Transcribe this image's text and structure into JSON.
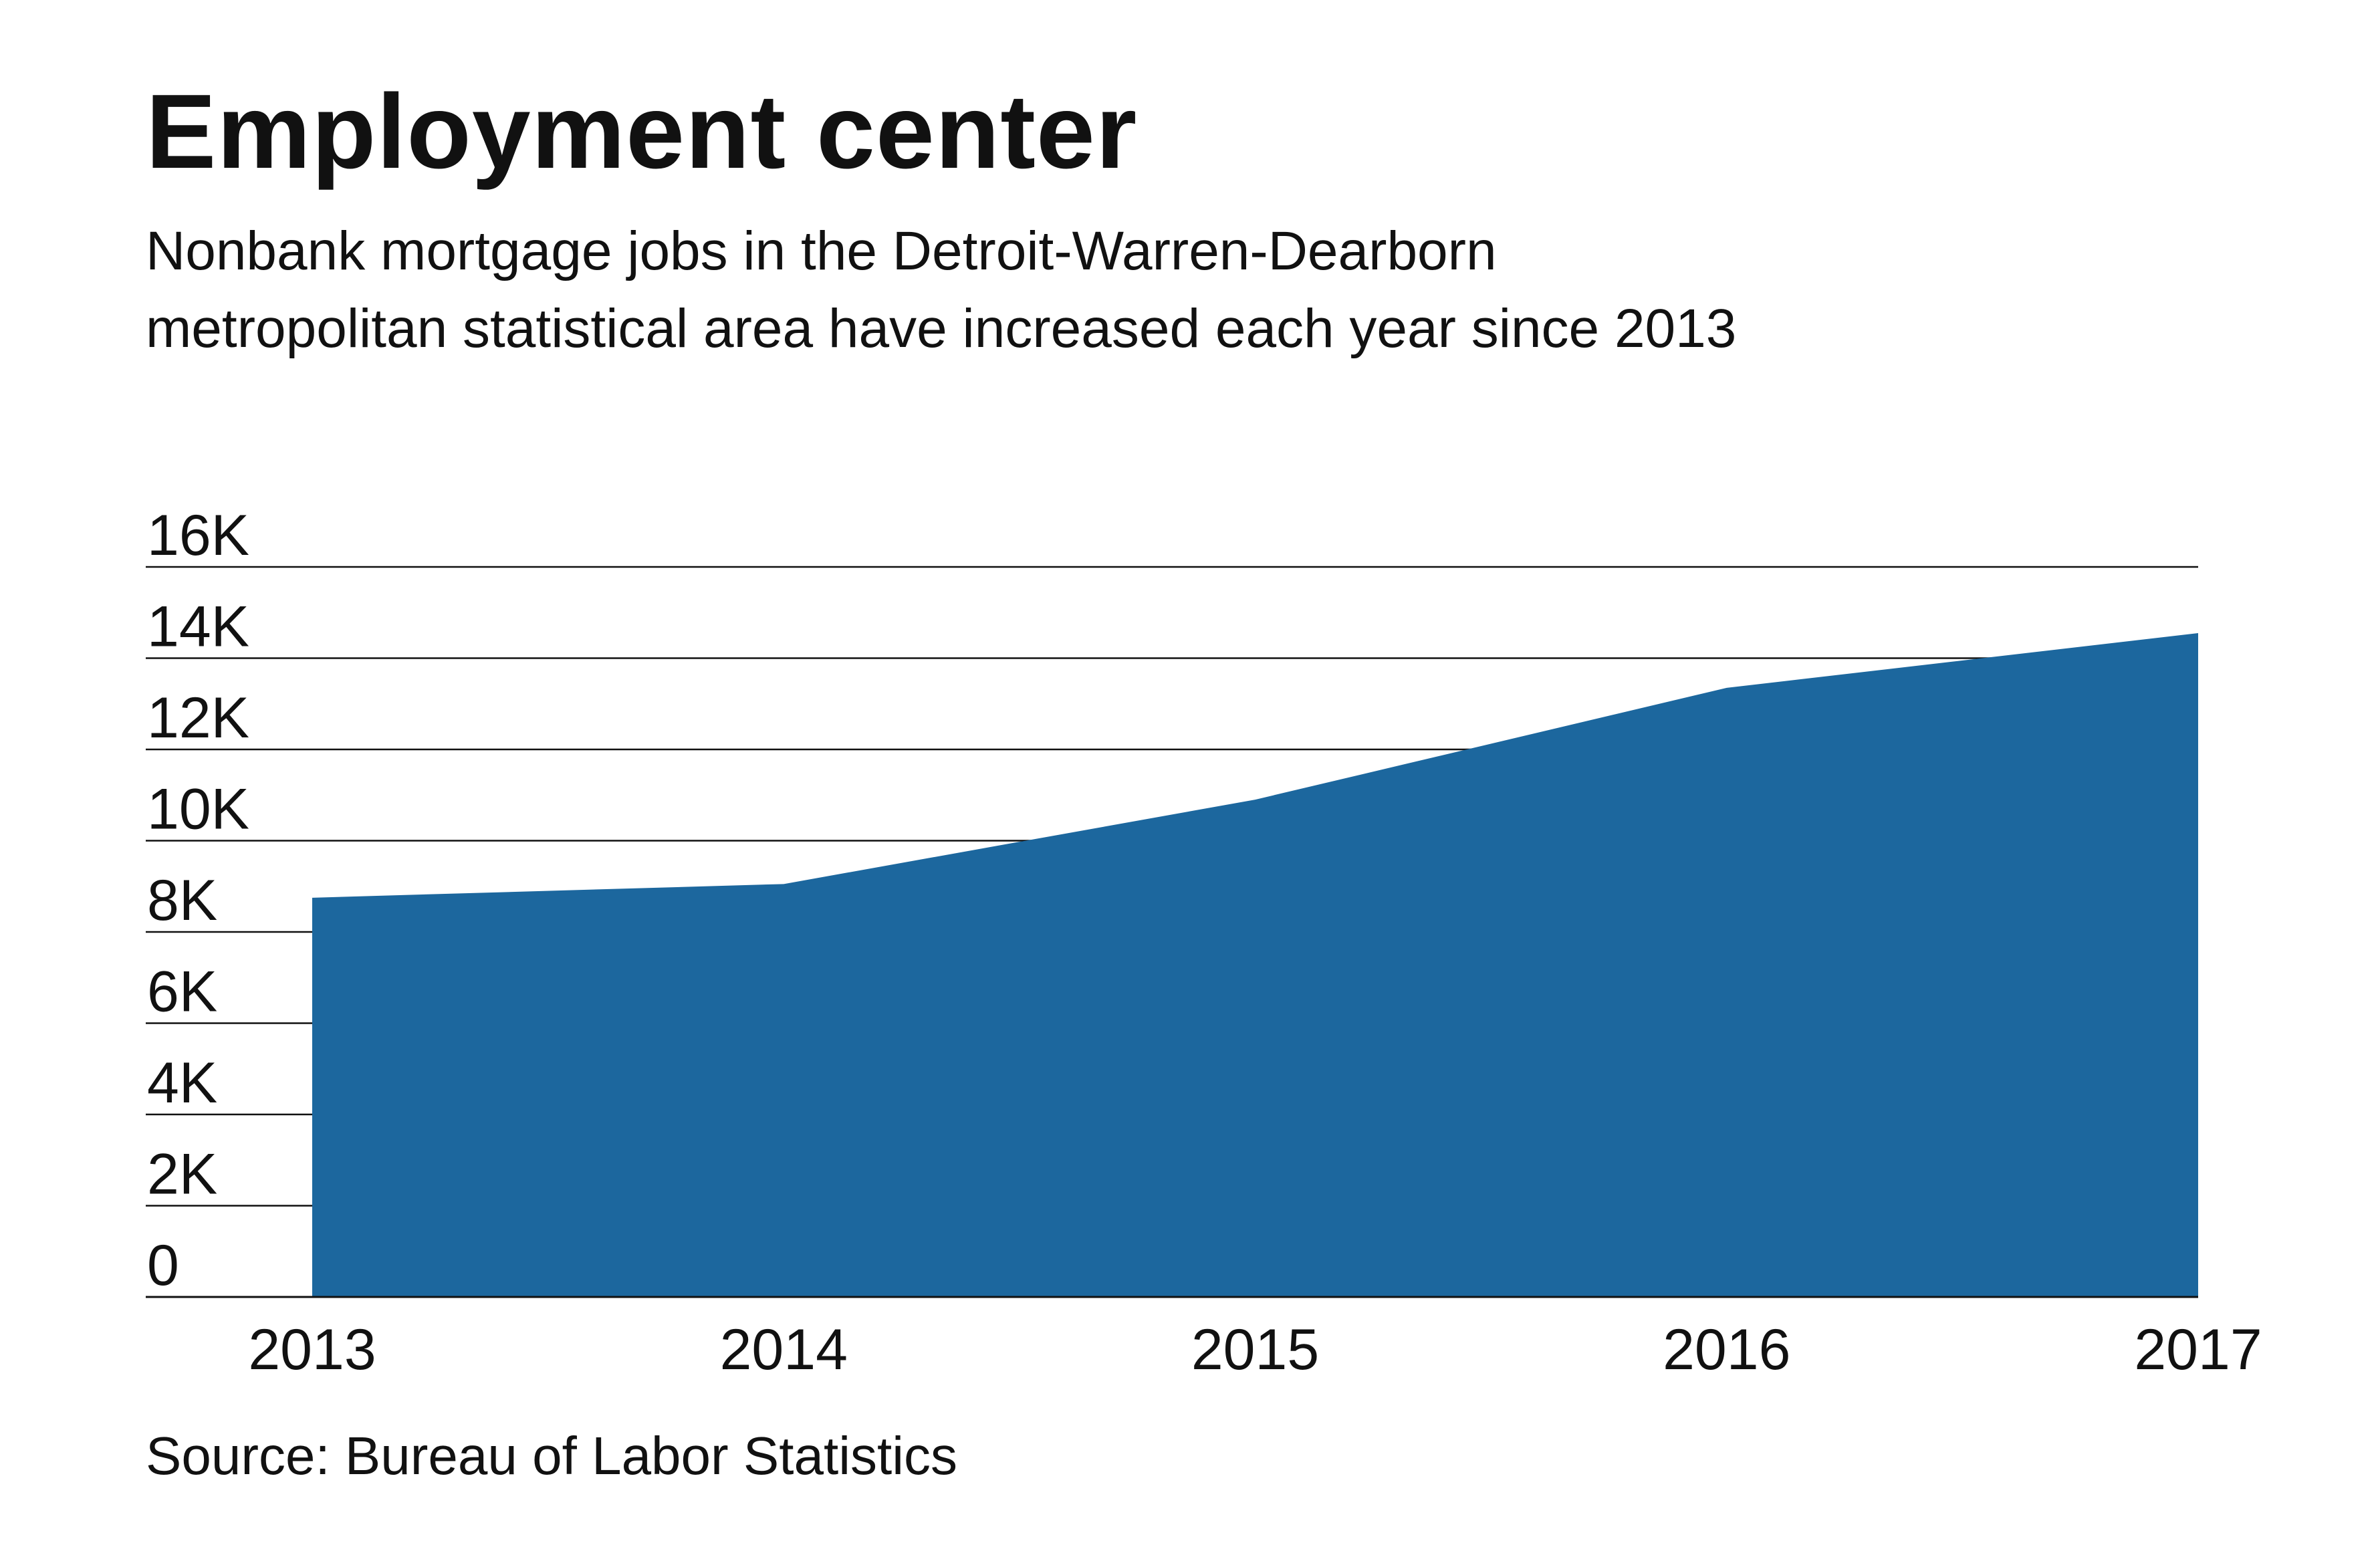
{
  "title": "Employment center",
  "subtitle": [
    "Nonbank mortgage jobs in the Detroit-Warren-Dearborn",
    "metropolitan statistical area have increased each year since 2013"
  ],
  "source": "Source: Bureau of Labor Statistics",
  "chart_data": {
    "type": "area",
    "title": "Employment center",
    "x": [
      2013,
      2014,
      2015,
      2016,
      2017
    ],
    "x_tick_labels": [
      "2013",
      "2014",
      "2015",
      "2016",
      "2017"
    ],
    "values": [
      8750,
      9050,
      10900,
      13350,
      14550
    ],
    "ylim": [
      0,
      16000
    ],
    "y_ticks": [
      0,
      2000,
      4000,
      6000,
      8000,
      10000,
      12000,
      14000,
      16000
    ],
    "y_tick_labels": [
      "0",
      "2K",
      "4K",
      "6K",
      "8K",
      "10K",
      "12K",
      "14K",
      "16K"
    ],
    "xlabel": "",
    "ylabel": "",
    "grid": true,
    "legend": "none",
    "colors": {
      "area": "#1c679e",
      "grid": "#111111",
      "text": "#111111"
    }
  }
}
